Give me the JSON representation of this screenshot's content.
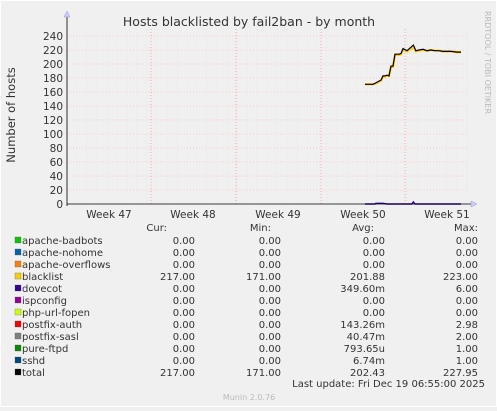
{
  "chart_data": {
    "type": "line",
    "title": "Hosts blacklisted by fail2ban - by month",
    "ylabel": "Number of hosts",
    "xlabel": "",
    "ylim": [
      0,
      250
    ],
    "yticks": [
      0,
      20,
      40,
      60,
      80,
      100,
      120,
      140,
      160,
      180,
      200,
      220,
      240
    ],
    "xticks": [
      "Week 47",
      "Week 48",
      "Week 49",
      "Week 50",
      "Week 51"
    ],
    "grid": true,
    "side_label": "RRDTOOL / TOBI OETIKER",
    "legend_headers": {
      "cur": "Cur:",
      "min": "Min:",
      "avg": "Avg:",
      "max": "Max:"
    },
    "series": [
      {
        "name": "apache-badbots",
        "color": "#00cc00",
        "cur": "0.00",
        "min": "0.00",
        "avg": "0.00",
        "max": "0.00"
      },
      {
        "name": "apache-nohome",
        "color": "#0066b3",
        "cur": "0.00",
        "min": "0.00",
        "avg": "0.00",
        "max": "0.00"
      },
      {
        "name": "apache-overflows",
        "color": "#ff8000",
        "cur": "0.00",
        "min": "0.00",
        "avg": "0.00",
        "max": "0.00"
      },
      {
        "name": "blacklist",
        "color": "#ffcc00",
        "cur": "217.00",
        "min": "171.00",
        "avg": "201.88",
        "max": "223.00",
        "points": [
          [
            0.745,
            171
          ],
          [
            0.755,
            171
          ],
          [
            0.765,
            171
          ],
          [
            0.772,
            172
          ],
          [
            0.778,
            174
          ],
          [
            0.785,
            176
          ],
          [
            0.79,
            182
          ],
          [
            0.795,
            182
          ],
          [
            0.8,
            184
          ],
          [
            0.805,
            183
          ],
          [
            0.81,
            196
          ],
          [
            0.815,
            196
          ],
          [
            0.82,
            213
          ],
          [
            0.83,
            213
          ],
          [
            0.835,
            214
          ],
          [
            0.84,
            220
          ],
          [
            0.85,
            218
          ],
          [
            0.86,
            222
          ],
          [
            0.868,
            223
          ],
          [
            0.872,
            218
          ],
          [
            0.88,
            219
          ],
          [
            0.89,
            220
          ],
          [
            0.9,
            219
          ],
          [
            0.91,
            220
          ],
          [
            0.92,
            219
          ],
          [
            0.93,
            219
          ],
          [
            0.94,
            218
          ],
          [
            0.95,
            218
          ],
          [
            0.96,
            218
          ],
          [
            0.975,
            217
          ],
          [
            0.985,
            217
          ]
        ]
      },
      {
        "name": "dovecot",
        "color": "#330099",
        "cur": "0.00",
        "min": "0.00",
        "avg": "349.60m",
        "max": "6.00",
        "points": [
          [
            0.745,
            0
          ],
          [
            0.77,
            0
          ],
          [
            0.772,
            1
          ],
          [
            0.79,
            1
          ],
          [
            0.8,
            0
          ],
          [
            0.862,
            0
          ],
          [
            0.866,
            3
          ],
          [
            0.87,
            0
          ],
          [
            0.985,
            0
          ]
        ]
      },
      {
        "name": "ispconfig",
        "color": "#990099",
        "cur": "0.00",
        "min": "0.00",
        "avg": "0.00",
        "max": "0.00"
      },
      {
        "name": "php-url-fopen",
        "color": "#ccff00",
        "cur": "0.00",
        "min": "0.00",
        "avg": "0.00",
        "max": "0.00"
      },
      {
        "name": "postfix-auth",
        "color": "#ff0000",
        "cur": "0.00",
        "min": "0.00",
        "avg": "143.26m",
        "max": "2.98"
      },
      {
        "name": "postfix-sasl",
        "color": "#808080",
        "cur": "0.00",
        "min": "0.00",
        "avg": "40.47m",
        "max": "2.00"
      },
      {
        "name": "pure-ftpd",
        "color": "#008f00",
        "cur": "0.00",
        "min": "0.00",
        "avg": "793.65u",
        "max": "1.00"
      },
      {
        "name": "sshd",
        "color": "#00487d",
        "cur": "0.00",
        "min": "0.00",
        "avg": "6.74m",
        "max": "1.00"
      },
      {
        "name": "total",
        "color": "#000000",
        "cur": "217.00",
        "min": "171.00",
        "avg": "202.43",
        "max": "227.95",
        "points": [
          [
            0.745,
            171
          ],
          [
            0.755,
            171
          ],
          [
            0.765,
            171
          ],
          [
            0.772,
            173
          ],
          [
            0.778,
            175
          ],
          [
            0.785,
            177
          ],
          [
            0.79,
            183
          ],
          [
            0.795,
            183
          ],
          [
            0.8,
            184
          ],
          [
            0.805,
            183
          ],
          [
            0.81,
            197
          ],
          [
            0.815,
            197
          ],
          [
            0.82,
            214
          ],
          [
            0.83,
            214
          ],
          [
            0.835,
            215
          ],
          [
            0.84,
            222
          ],
          [
            0.85,
            219
          ],
          [
            0.86,
            224
          ],
          [
            0.866,
            227
          ],
          [
            0.872,
            219
          ],
          [
            0.88,
            220
          ],
          [
            0.89,
            221
          ],
          [
            0.9,
            219
          ],
          [
            0.91,
            220
          ],
          [
            0.92,
            219
          ],
          [
            0.93,
            219
          ],
          [
            0.94,
            218
          ],
          [
            0.95,
            218
          ],
          [
            0.96,
            218
          ],
          [
            0.975,
            217
          ],
          [
            0.985,
            217
          ]
        ]
      }
    ],
    "last_update": "Last update: Fri Dec 19 06:55:00 2025",
    "generator": "Munin 2.0.76"
  }
}
